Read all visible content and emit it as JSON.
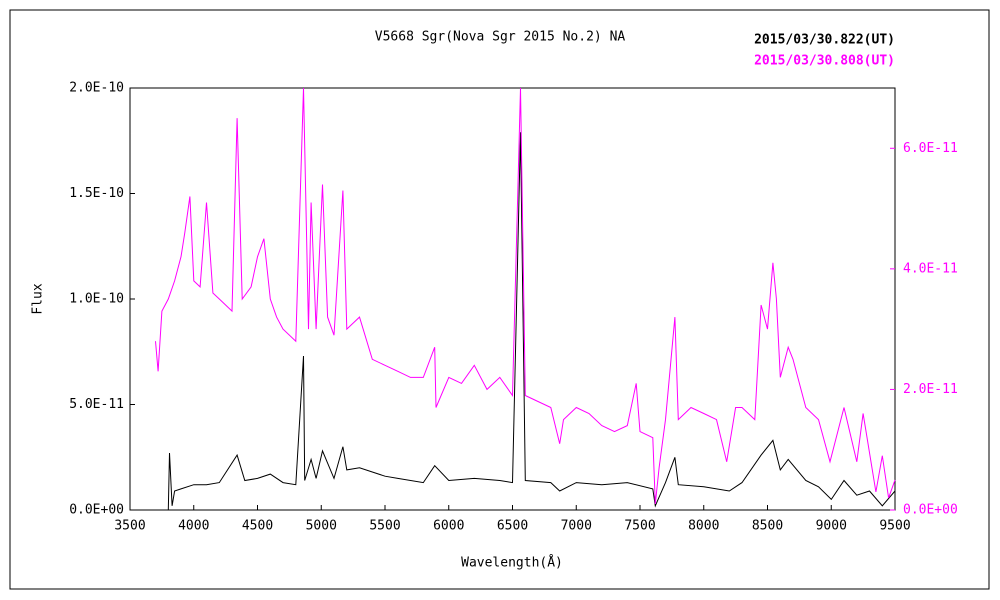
{
  "chart_data": {
    "type": "line",
    "title": "V5668 Sgr(Nova Sgr 2015 No.2)  NA",
    "xlabel": "Wavelength(Å)",
    "ylabel": "Flux",
    "xlim": [
      3500,
      9500
    ],
    "xticks": [
      3500,
      4000,
      4500,
      5000,
      5500,
      6000,
      6500,
      7000,
      7500,
      8000,
      8500,
      9000,
      9500
    ],
    "ylim": [
      0,
      2e-10
    ],
    "yticks": [
      {
        "value": 0,
        "label": "0.0E+00"
      },
      {
        "value": 5e-11,
        "label": "5.0E-11"
      },
      {
        "value": 1e-10,
        "label": "1.0E-10"
      },
      {
        "value": 1.5e-10,
        "label": "1.5E-10"
      },
      {
        "value": 2e-10,
        "label": "2.0E-10"
      }
    ],
    "y2lim": [
      0,
      7e-11
    ],
    "y2ticks": [
      {
        "value": 0,
        "label": "0.0E+00"
      },
      {
        "value": 2e-11,
        "label": "2.0E-11"
      },
      {
        "value": 4e-11,
        "label": "4.0E-11"
      },
      {
        "value": 6e-11,
        "label": "6.0E-11"
      }
    ],
    "legend": "top-right",
    "series": [
      {
        "name": "2015/03/30.822(UT)",
        "color": "#000000",
        "x": [
          3800,
          3810,
          3830,
          3850,
          3900,
          4000,
          4100,
          4200,
          4340,
          4400,
          4500,
          4600,
          4700,
          4800,
          4861,
          4870,
          4920,
          4960,
          5010,
          5100,
          5170,
          5200,
          5300,
          5400,
          5500,
          5600,
          5800,
          5890,
          6000,
          6200,
          6400,
          6500,
          6563,
          6600,
          6800,
          6870,
          7000,
          7200,
          7400,
          7600,
          7620,
          7700,
          7774,
          7800,
          8000,
          8200,
          8300,
          8450,
          8542,
          8600,
          8662,
          8800,
          8900,
          9000,
          9100,
          9200,
          9300,
          9400,
          9500
        ],
        "values": [
          0,
          2.7e-11,
          2e-12,
          9e-12,
          1e-11,
          1.2e-11,
          1.2e-11,
          1.3e-11,
          2.6e-11,
          1.4e-11,
          1.5e-11,
          1.7e-11,
          1.3e-11,
          1.2e-11,
          7.3e-11,
          1.4e-11,
          2.4e-11,
          1.5e-11,
          2.8e-11,
          1.5e-11,
          3e-11,
          1.9e-11,
          2e-11,
          1.8e-11,
          1.6e-11,
          1.5e-11,
          1.3e-11,
          2.1e-11,
          1.4e-11,
          1.5e-11,
          1.4e-11,
          1.3e-11,
          1.79e-10,
          1.4e-11,
          1.3e-11,
          9e-12,
          1.3e-11,
          1.2e-11,
          1.3e-11,
          1e-11,
          2e-12,
          1.3e-11,
          2.5e-11,
          1.2e-11,
          1.1e-11,
          9e-12,
          1.3e-11,
          2.6e-11,
          3.3e-11,
          1.9e-11,
          2.4e-11,
          1.4e-11,
          1.1e-11,
          5e-12,
          1.4e-11,
          7e-12,
          9e-12,
          2e-12,
          9e-12
        ]
      },
      {
        "name": "2015/03/30.808(UT)",
        "color": "#ff00ff",
        "axis": "y2",
        "x": [
          3700,
          3720,
          3750,
          3800,
          3850,
          3900,
          3930,
          3970,
          4000,
          4050,
          4100,
          4150,
          4200,
          4250,
          4300,
          4340,
          4380,
          4450,
          4500,
          4550,
          4600,
          4650,
          4700,
          4800,
          4861,
          4900,
          4920,
          4960,
          5010,
          5050,
          5100,
          5170,
          5200,
          5300,
          5400,
          5500,
          5600,
          5700,
          5800,
          5890,
          5900,
          6000,
          6100,
          6200,
          6300,
          6400,
          6500,
          6563,
          6600,
          6700,
          6800,
          6870,
          6900,
          7000,
          7100,
          7200,
          7300,
          7400,
          7470,
          7500,
          7600,
          7620,
          7650,
          7700,
          7774,
          7800,
          7900,
          8000,
          8100,
          8180,
          8250,
          8300,
          8400,
          8450,
          8500,
          8542,
          8570,
          8600,
          8662,
          8700,
          8800,
          8900,
          8990,
          9100,
          9200,
          9250,
          9350,
          9400,
          9450,
          9500
        ],
        "values": [
          2.8e-11,
          2.3e-11,
          3.3e-11,
          3.5e-11,
          3.8e-11,
          4.2e-11,
          4.6e-11,
          5.2e-11,
          3.8e-11,
          3.7e-11,
          5.1e-11,
          3.6e-11,
          3.5e-11,
          3.4e-11,
          3.3e-11,
          6.5e-11,
          3.5e-11,
          3.7e-11,
          4.2e-11,
          4.5e-11,
          3.5e-11,
          3.2e-11,
          3e-11,
          2.8e-11,
          7e-11,
          3e-11,
          5.1e-11,
          3e-11,
          5.4e-11,
          3.2e-11,
          2.9e-11,
          5.3e-11,
          3e-11,
          3.2e-11,
          2.5e-11,
          2.4e-11,
          2.3e-11,
          2.2e-11,
          2.2e-11,
          2.7e-11,
          1.7e-11,
          2.2e-11,
          2.1e-11,
          2.4e-11,
          2e-11,
          2.2e-11,
          1.9e-11,
          7e-11,
          1.9e-11,
          1.8e-11,
          1.7e-11,
          1.1e-11,
          1.5e-11,
          1.7e-11,
          1.6e-11,
          1.4e-11,
          1.3e-11,
          1.4e-11,
          2.1e-11,
          1.3e-11,
          1.2e-11,
          1e-12,
          7e-12,
          1.5e-11,
          3.2e-11,
          1.5e-11,
          1.7e-11,
          1.6e-11,
          1.5e-11,
          8e-12,
          1.7e-11,
          1.7e-11,
          1.5e-11,
          3.4e-11,
          3e-11,
          4.1e-11,
          3.5e-11,
          2.2e-11,
          2.7e-11,
          2.5e-11,
          1.7e-11,
          1.5e-11,
          8e-12,
          1.7e-11,
          8e-12,
          1.6e-11,
          3e-12,
          9e-12,
          2e-12,
          5e-12
        ]
      }
    ]
  }
}
